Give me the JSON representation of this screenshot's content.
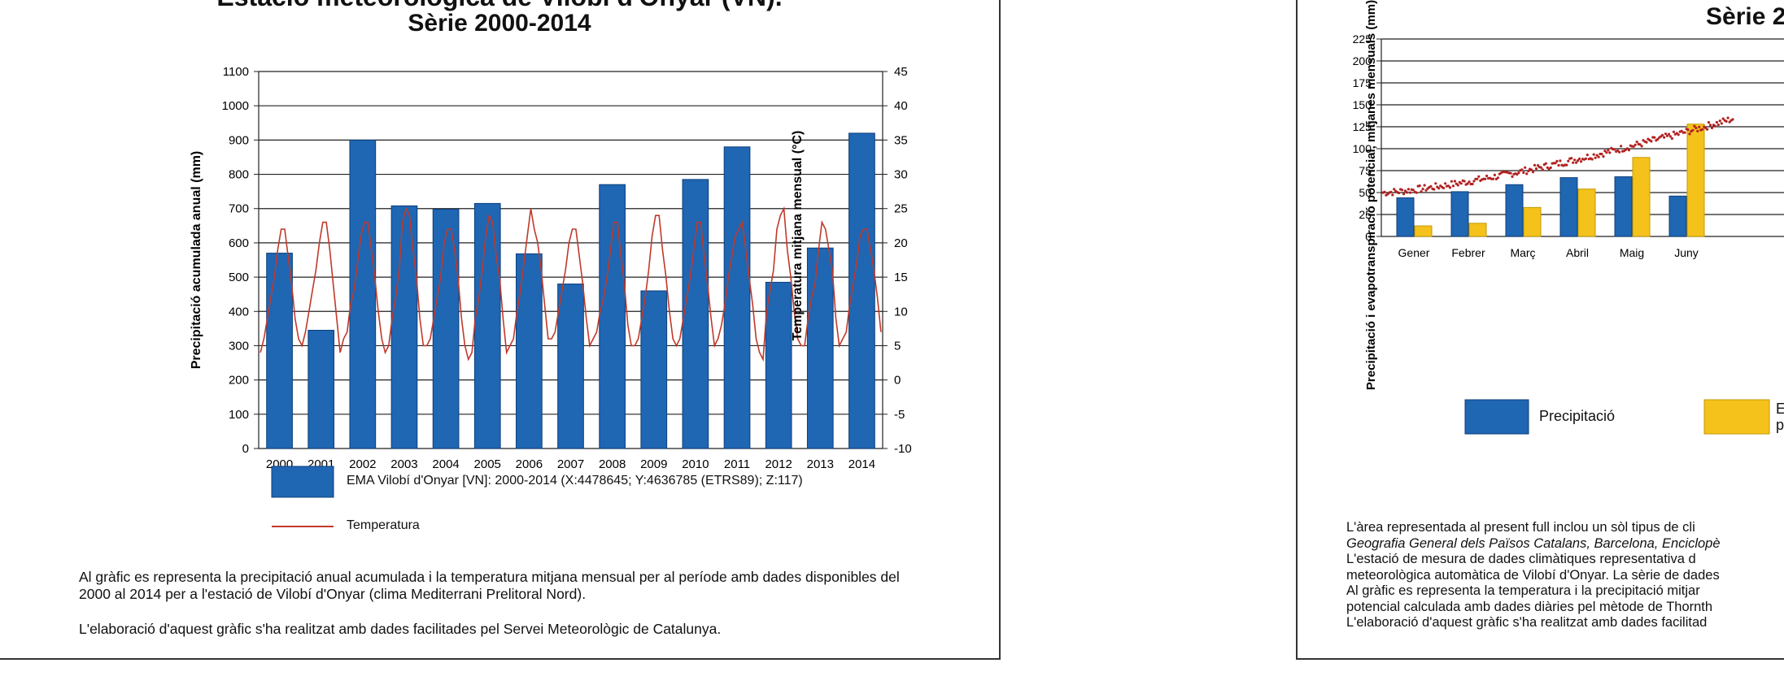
{
  "left_panel": {
    "title_line1": "Estació meteorològica de Vilobí d'Onyar (VN).",
    "title_line2": "Sèrie 2000-2014",
    "legend_bar": "EMA Vilobí d'Onyar [VN]: 2000-2014 (X:4478645; Y:4636785 (ETRS89); Z:117)",
    "legend_line": "Temperatura",
    "paragraph1": "Al gràfic es representa la precipitació anual acumulada i la temperatura mitjana mensual per al període amb dades disponibles del 2000 al 2014 per a l'estació de Vilobí d'Onyar (clima Mediterrani Prelitoral Nord).",
    "paragraph2": "L'elaboració d'aquest gràfic s'ha realitzat amb dades facilitades pel Servei Meteorològic de Catalunya."
  },
  "right_panel": {
    "title_line2": "Sèrie 2",
    "legend_precip": "Precipitació",
    "legend_etp": "E\np",
    "text_lines": [
      "L'àrea representada al present full inclou un sòl tipus de cli",
      "Geografia General dels Països Catalans, Barcelona, Enciclopè",
      "L'estació de mesura de dades climàtiques representativa d",
      "meteorològica automàtica de Vilobí d'Onyar. La sèrie de dades",
      "Al gràfic es representa la temperatura i la precipitació mitjar",
      "potencial calculada amb dades diàries pel mètode de Thornth",
      "L'elaboració d'aquest gràfic s'ha realitzat amb dades facilitad"
    ]
  },
  "colors": {
    "bar_blue": "#1f66b3",
    "bar_blue_edge": "#0d3f7a",
    "temp_red": "#c0392b",
    "etp_yellow": "#f5c21b",
    "dots_red": "#b22222"
  },
  "chart_data": [
    {
      "type": "bar",
      "categories": [
        "2000",
        "2001",
        "2002",
        "2003",
        "2004",
        "2005",
        "2006",
        "2007",
        "2008",
        "2009",
        "2010",
        "2011",
        "2012",
        "2013",
        "2014"
      ],
      "series": [
        {
          "name": "EMA Vilobí d'Onyar [VN]: 2000-2014 (X:4478645; Y:4636785 (ETRS89); Z:117)",
          "values": [
            570,
            345,
            900,
            708,
            698,
            715,
            568,
            480,
            770,
            460,
            785,
            880,
            485,
            585,
            920
          ]
        }
      ],
      "line_series": {
        "name": "Temperatura",
        "values": [
          4,
          6,
          9,
          12,
          15,
          19,
          22,
          22,
          18,
          14,
          9,
          6,
          5,
          7,
          10,
          13,
          16,
          20,
          23,
          23,
          19,
          14,
          9,
          4,
          6,
          7,
          11,
          13,
          17,
          21,
          23,
          23,
          19,
          15,
          10,
          6,
          4,
          5,
          9,
          12,
          16,
          23,
          25,
          24,
          19,
          15,
          9,
          5,
          5,
          6,
          9,
          12,
          15,
          20,
          22,
          22,
          19,
          15,
          9,
          5,
          3,
          4,
          9,
          12,
          16,
          21,
          24,
          23,
          18,
          15,
          9,
          4,
          5,
          6,
          10,
          13,
          17,
          21,
          25,
          22,
          20,
          16,
          11,
          6,
          6,
          7,
          10,
          13,
          16,
          20,
          22,
          22,
          18,
          14,
          9,
          5,
          6,
          7,
          10,
          12,
          15,
          19,
          23,
          23,
          18,
          14,
          8,
          5,
          5,
          6,
          9,
          12,
          16,
          21,
          24,
          24,
          19,
          15,
          10,
          6,
          5,
          6,
          9,
          12,
          15,
          19,
          23,
          23,
          18,
          14,
          9,
          5,
          6,
          8,
          11,
          15,
          18,
          21,
          22,
          23,
          19,
          15,
          11,
          6,
          4,
          3,
          10,
          13,
          16,
          22,
          24,
          25,
          19,
          15,
          10,
          6,
          5,
          5,
          9,
          12,
          14,
          19,
          23,
          22,
          19,
          16,
          9,
          5,
          6,
          7,
          11,
          14,
          17,
          21,
          22,
          22,
          19,
          16,
          12,
          7
        ]
      },
      "ylabel": "Precipitació acumulada anual (mm)",
      "ylabel_right": "Temperatura mitjana mensual (°C)",
      "ylim": [
        0,
        1100
      ],
      "ylim_right": [
        -10,
        45
      ],
      "yticks": [
        "0",
        "100",
        "200",
        "300",
        "400",
        "500",
        "600",
        "700",
        "800",
        "900",
        "1000",
        "1100"
      ],
      "yticks_right": [
        "-10",
        "-5",
        "0",
        "5",
        "10",
        "15",
        "20",
        "25",
        "30",
        "35",
        "40",
        "45"
      ]
    },
    {
      "type": "bar",
      "categories": [
        "Gener",
        "Febrer",
        "Març",
        "Abril",
        "Maig",
        "Juny"
      ],
      "series": [
        {
          "name": "Precipitació",
          "values": [
            44,
            51,
            59,
            67,
            68,
            46
          ]
        },
        {
          "name": "E p",
          "values": [
            12,
            15,
            33,
            54,
            90,
            128
          ]
        }
      ],
      "ylabel": "Precipitació i evapotranspiració potencial, mitjanes mensuals (mm)",
      "ylim": [
        0,
        225
      ],
      "yticks": [
        "0",
        "25",
        "50",
        "75",
        "100",
        "125",
        "150",
        "175",
        "200",
        "225"
      ]
    }
  ]
}
